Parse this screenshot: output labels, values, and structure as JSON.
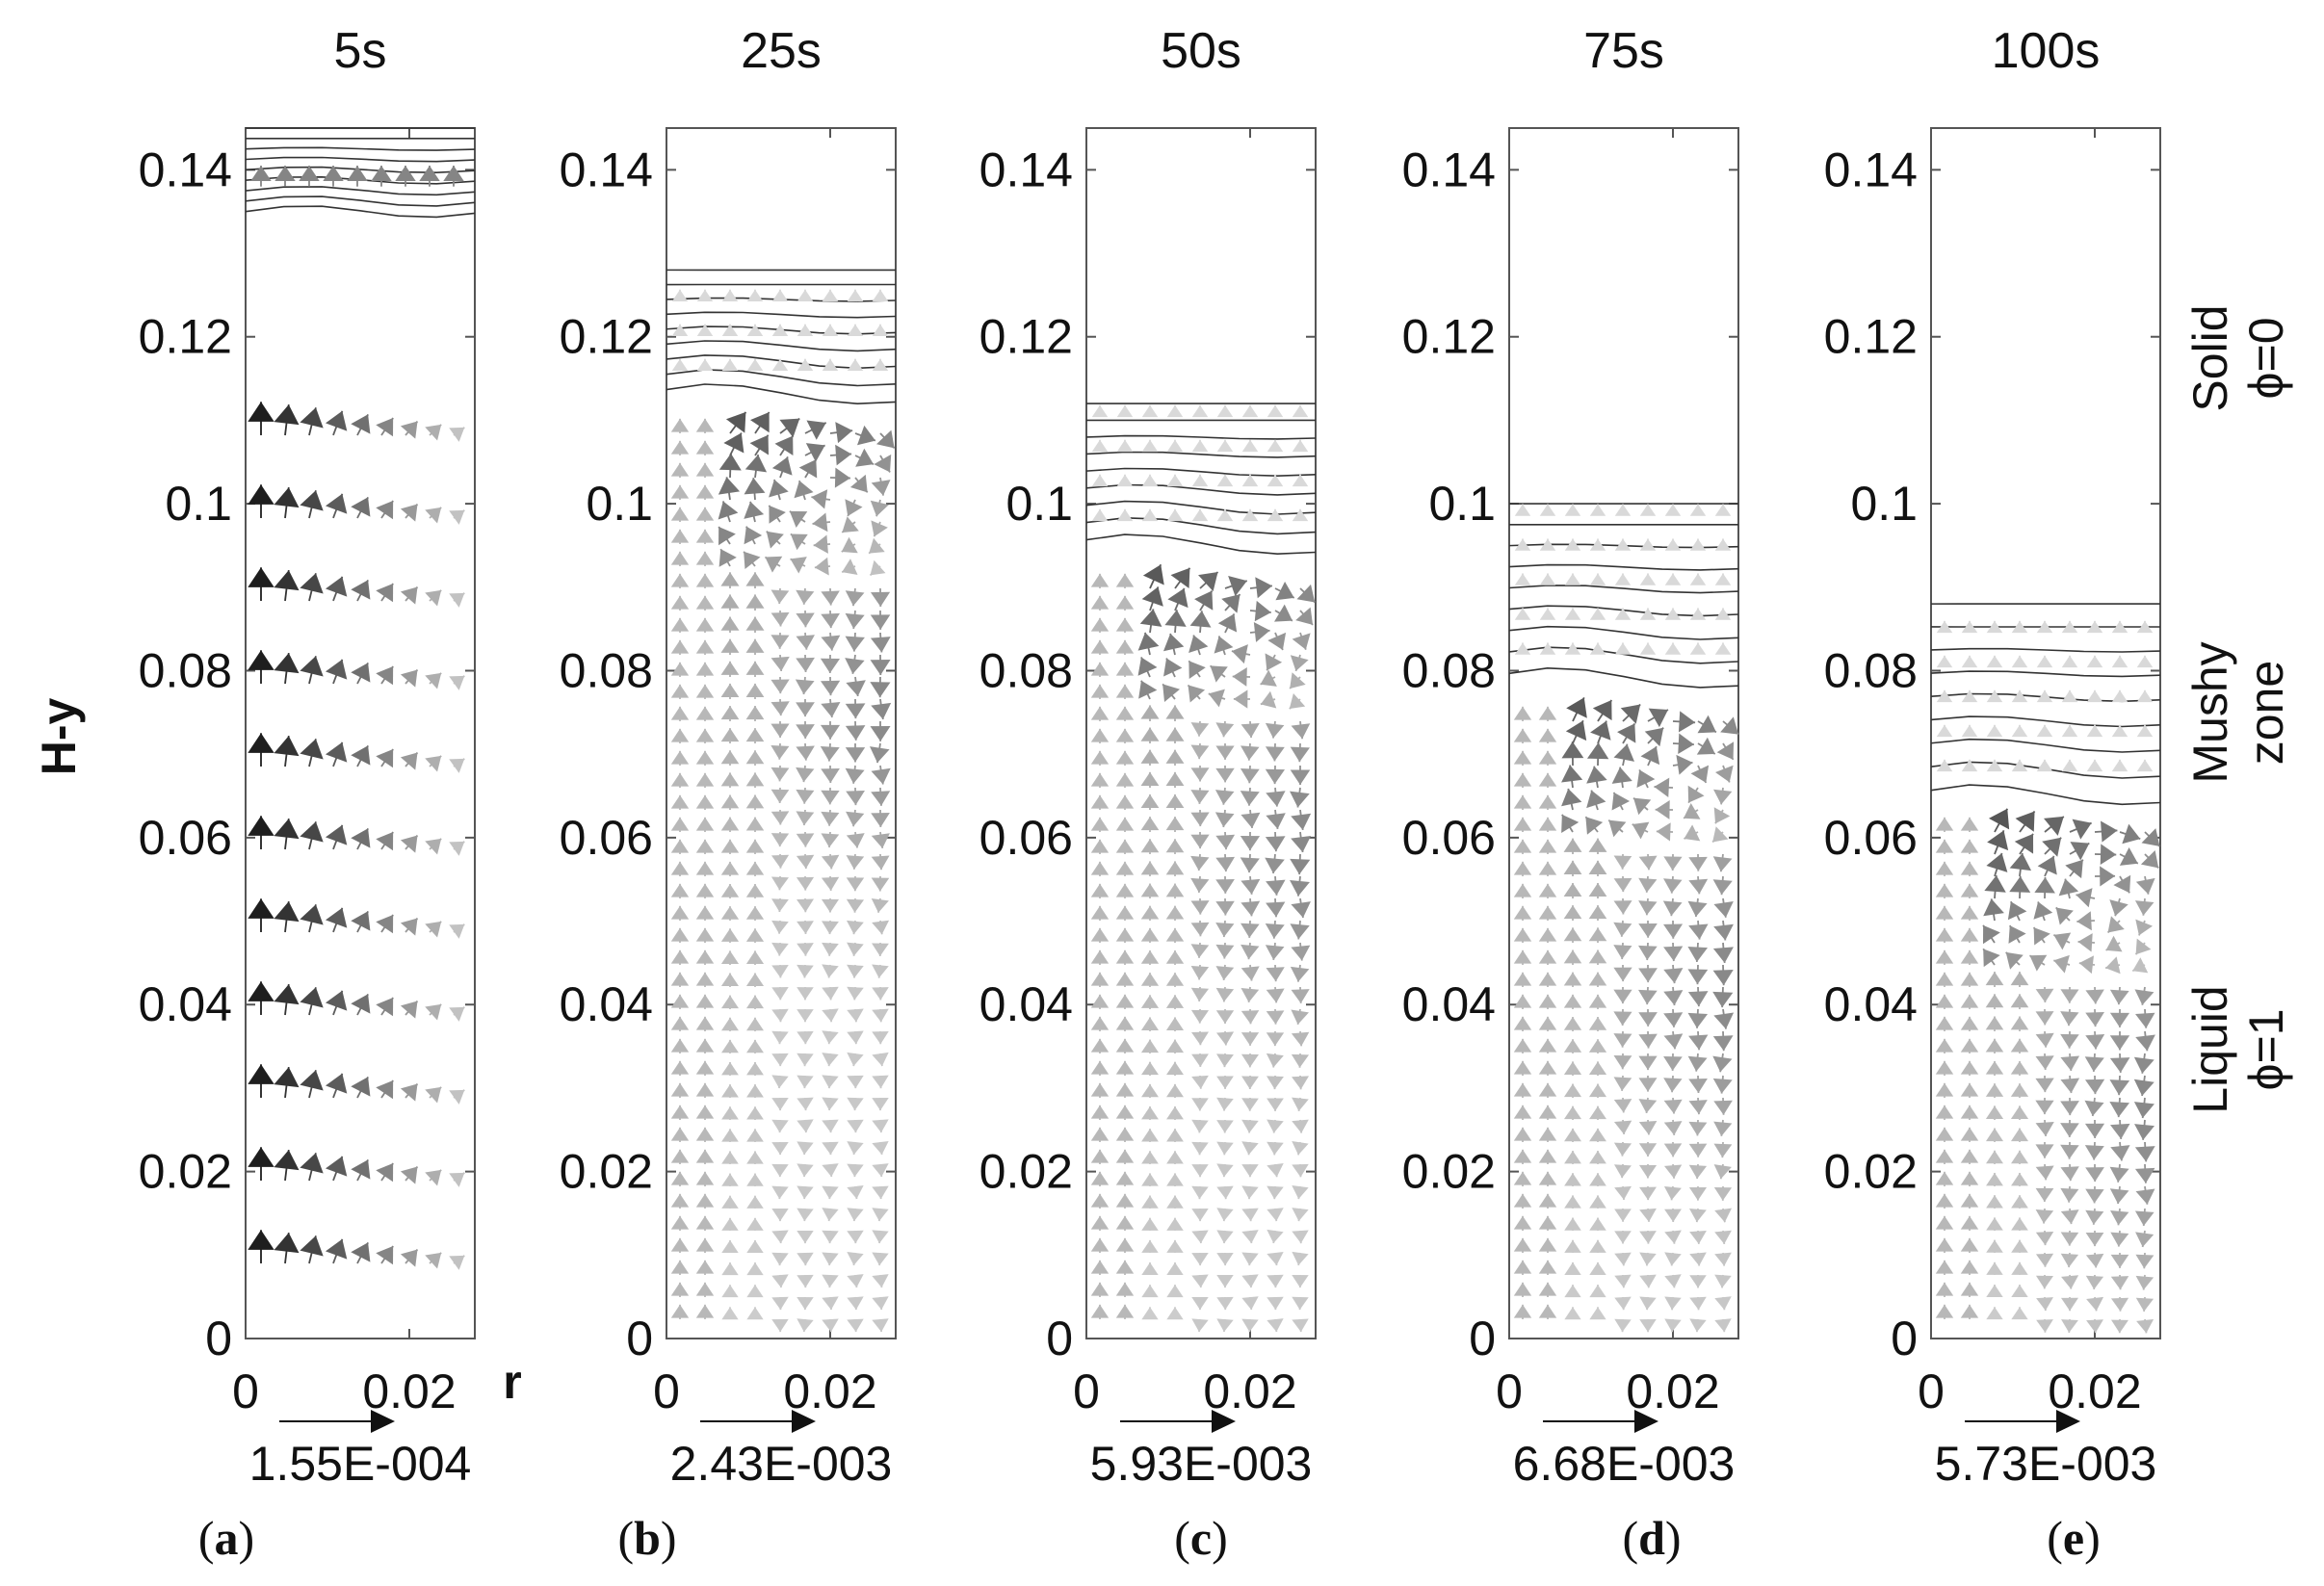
{
  "figure": {
    "y_axis_title": "H-y",
    "x_axis_title": "r",
    "y_ticks": [
      "0.14",
      "0.12",
      "0.1",
      "0.08",
      "0.06",
      "0.04",
      "0.02",
      "0"
    ],
    "x_ticks": [
      "0",
      "0.02"
    ],
    "panels": [
      {
        "id": "a",
        "time": "5s",
        "ref_vector": "1.55E-004",
        "panel_label": {
          "open": "(",
          "letter": "a",
          "close": ")"
        },
        "solid_top": 0.145,
        "mushy_bottom": 0.135,
        "pattern": "uniform"
      },
      {
        "id": "b",
        "time": "25s",
        "ref_vector": "2.43E-003",
        "panel_label": {
          "open": "(",
          "letter": "b",
          "close": ")"
        },
        "solid_top": 0.128,
        "mushy_bottom": 0.114,
        "pattern": "vortex"
      },
      {
        "id": "c",
        "time": "50s",
        "ref_vector": "5.93E-003",
        "panel_label": {
          "open": "(",
          "letter": "c",
          "close": ")"
        },
        "solid_top": 0.112,
        "mushy_bottom": 0.096,
        "pattern": "vortex"
      },
      {
        "id": "d",
        "time": "75s",
        "ref_vector": "6.68E-003",
        "panel_label": {
          "open": "(",
          "letter": "d",
          "close": ")"
        },
        "solid_top": 0.1,
        "mushy_bottom": 0.08,
        "pattern": "vortex"
      },
      {
        "id": "e",
        "time": "100s",
        "ref_vector": "5.73E-003",
        "panel_label": {
          "open": "(",
          "letter": "e",
          "close": ")"
        },
        "solid_top": 0.088,
        "mushy_bottom": 0.066,
        "pattern": "vortex"
      }
    ],
    "zones": [
      {
        "name": "Solid",
        "phi": "ϕ=0"
      },
      {
        "name": "Mushy",
        "phi": "zone"
      },
      {
        "name": "Liquid",
        "phi": "ϕ=1"
      }
    ],
    "ranges": {
      "y": [
        0,
        0.145
      ],
      "r": [
        0,
        0.028
      ]
    }
  }
}
